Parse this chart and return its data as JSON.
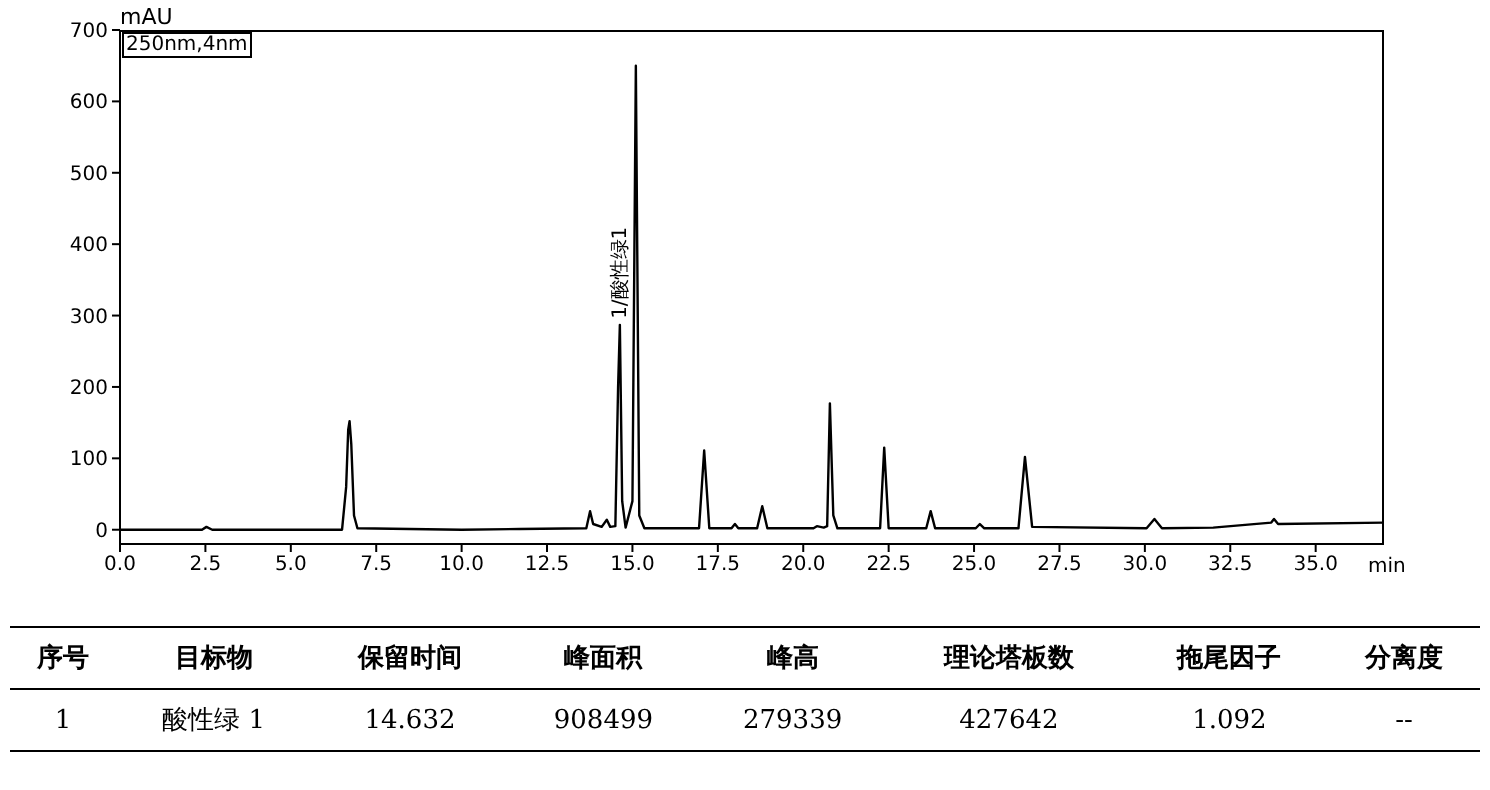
{
  "chart_data": {
    "type": "line",
    "xlabel": "min",
    "ylabel": "mAU",
    "xlim": [
      0,
      37
    ],
    "xticks": [
      {
        "value": 0,
        "label": "0.0"
      },
      {
        "value": 2.5,
        "label": "2.5"
      },
      {
        "value": 5,
        "label": "5.0"
      },
      {
        "value": 7.5,
        "label": "7.5"
      },
      {
        "value": 10,
        "label": "10.0"
      },
      {
        "value": 12.5,
        "label": "12.5"
      },
      {
        "value": 15,
        "label": "15.0"
      },
      {
        "value": 17.5,
        "label": "17.5"
      },
      {
        "value": 20,
        "label": "20.0"
      },
      {
        "value": 22.5,
        "label": "22.5"
      },
      {
        "value": 25,
        "label": "25.0"
      },
      {
        "value": 27.5,
        "label": "27.5"
      },
      {
        "value": 30,
        "label": "30.0"
      },
      {
        "value": 32.5,
        "label": "32.5"
      },
      {
        "value": 35,
        "label": "35.0"
      }
    ],
    "ylim": [
      -20,
      700
    ],
    "yticks": [
      0,
      100,
      200,
      300,
      400,
      500,
      600,
      700
    ],
    "marker": "none",
    "line_style": "solid",
    "series": [
      {
        "color": "#000000",
        "x": [
          0,
          2.4,
          2.53,
          2.7,
          6.5,
          6.62,
          6.68,
          6.72,
          6.77,
          6.85,
          6.95,
          10,
          11.7,
          13.65,
          13.76,
          13.85,
          14.1,
          14.25,
          14.35,
          14.5,
          14.58,
          14.632,
          14.7,
          14.8,
          15.0,
          15.1,
          15.2,
          15.35,
          16.95,
          17.1,
          17.25,
          17.9,
          18.0,
          18.1,
          18.65,
          18.8,
          18.95,
          20.3,
          20.4,
          20.6,
          20.7,
          20.78,
          20.88,
          21.0,
          22.25,
          22.37,
          22.5,
          23.6,
          23.73,
          23.86,
          25.05,
          25.17,
          25.3,
          26.3,
          26.49,
          26.7,
          30.05,
          30.28,
          30.5,
          32.0,
          33.7,
          33.78,
          33.9,
          37
        ],
        "values": [
          0,
          0,
          4,
          0,
          0,
          60,
          140,
          152,
          120,
          20,
          2,
          0,
          1,
          2,
          26,
          8,
          4,
          14,
          4,
          5,
          200,
          287,
          40,
          3,
          40,
          650,
          20,
          2,
          2,
          111,
          2,
          2,
          8,
          2,
          2,
          33,
          2,
          2,
          5,
          3,
          5,
          177,
          20,
          2,
          2,
          115,
          2,
          2,
          26,
          2,
          2,
          8,
          2,
          2,
          102,
          4,
          2,
          15,
          2,
          3,
          10,
          15,
          8,
          10
        ]
      }
    ],
    "annotations": [
      "250nm,4nm",
      {
        "text": "1/酸性绿1",
        "x": 14.632,
        "y": 287
      },
      "序号",
      "目标物",
      "保留时间",
      "峰面积",
      "峰高",
      "理论塔板数",
      "拖尾因子",
      "分离度",
      "1",
      "酸性绿 1",
      "14.632",
      "908499",
      "279339",
      "427642",
      "1.092",
      "--"
    ]
  }
}
